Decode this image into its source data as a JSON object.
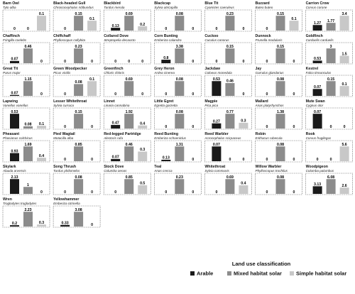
{
  "chart_data": {
    "type": "bar",
    "categories": [
      "Arable",
      "Mixed habitat solar",
      "Simple habitat solar"
    ],
    "colors": [
      "#1a1a1a",
      "#8c8c8c",
      "#c8c8c8"
    ],
    "legend": {
      "title": "Land use classification",
      "entries": [
        "Arable",
        "Mixed habitat solar",
        "Simple habitat solar"
      ],
      "placement": "bottom-right"
    },
    "panels": [
      {
        "common": "Barn Owl",
        "latin": "Tyto alba",
        "values": [
          0,
          0,
          0.1
        ],
        "labels": [
          "0",
          "0",
          "0.1"
        ]
      },
      {
        "common": "Black-headed Gull",
        "latin": "Chroicocephalus ridibundus",
        "values": [
          0,
          0.15,
          0.1
        ],
        "labels": [
          "0",
          "0.15",
          "0.1"
        ]
      },
      {
        "common": "Blackbird",
        "latin": "Turdus merula",
        "values": [
          0.13,
          0.69,
          0.2
        ],
        "labels": [
          "0.13",
          "0.69",
          "0.2"
        ]
      },
      {
        "common": "Blackcap",
        "latin": "Sylvia atricapilla",
        "values": [
          0,
          0.08,
          0
        ],
        "labels": [
          "0",
          "0.08",
          "0"
        ]
      },
      {
        "common": "Blue Tit",
        "latin": "Cyanistes caeruleus",
        "values": [
          0,
          0.23,
          0
        ],
        "labels": [
          "0",
          "0.23",
          "0"
        ]
      },
      {
        "common": "Buzzard",
        "latin": "Buteo buteo",
        "values": [
          0,
          0.15,
          0.1
        ],
        "labels": [
          "0",
          "0.15",
          "0.1"
        ]
      },
      {
        "common": "Carrion Crow",
        "latin": "Corvus corone",
        "values": [
          1.27,
          1.77,
          3.4
        ],
        "labels": [
          "1.27",
          "1.77",
          "3.4"
        ]
      },
      {
        "common": "Chaffinch",
        "latin": "Fringilla coelebs",
        "values": [
          0.07,
          0.46,
          0
        ],
        "labels": [
          "0.07",
          "0.46",
          "0"
        ]
      },
      {
        "common": "Chiffchaff",
        "latin": "Phylloscopus collybita",
        "values": [
          0,
          0.23,
          0
        ],
        "labels": [
          "0",
          "0.23",
          "0"
        ]
      },
      {
        "common": "Collared Dove",
        "latin": "Streptopelia decaocto",
        "values": [
          0,
          0,
          0
        ],
        "labels": [
          "0",
          "0",
          "0"
        ]
      },
      {
        "common": "Corn Bunting",
        "latin": "Emberiza calandra",
        "values": [
          0.8,
          3.38,
          0
        ],
        "labels": [
          "0.8",
          "3.38",
          "0"
        ]
      },
      {
        "common": "Cuckoo",
        "latin": "Cuculus canorus",
        "values": [
          0,
          0.15,
          0
        ],
        "labels": [
          "0",
          "0.15",
          "0"
        ]
      },
      {
        "common": "Dunnock",
        "latin": "Prunella modularis",
        "values": [
          0,
          0.15,
          0
        ],
        "labels": [
          "0",
          "0.15",
          "0"
        ]
      },
      {
        "common": "Goldfinch",
        "latin": "Carduelis carduelis",
        "values": [
          0.53,
          3,
          1.5
        ],
        "labels": [
          "0.53",
          "3",
          "1.5"
        ]
      },
      {
        "common": "Great Tit",
        "latin": "Parus major",
        "values": [
          0.07,
          1.15,
          0
        ],
        "labels": [
          "0.07",
          "1.15",
          "0"
        ]
      },
      {
        "common": "Green Woodpecker",
        "latin": "Picus viridis",
        "values": [
          0,
          0.08,
          0.1
        ],
        "labels": [
          "0",
          "0.08",
          "0.1"
        ]
      },
      {
        "common": "Greenfinch",
        "latin": "Chloris chloris",
        "values": [
          0,
          0.69,
          0
        ],
        "labels": [
          "0",
          "0.69",
          "0"
        ]
      },
      {
        "common": "Grey Heron",
        "latin": "Ardea cinerea",
        "values": [
          0,
          0.08,
          0
        ],
        "labels": [
          "0",
          "0.08",
          "0"
        ]
      },
      {
        "common": "Jackdaw",
        "latin": "Coloeus monedula",
        "values": [
          0.53,
          0.46,
          0
        ],
        "labels": [
          "0.53",
          "0.46",
          "0"
        ]
      },
      {
        "common": "Jay",
        "latin": "Garrulus glandarius",
        "values": [
          0,
          0.08,
          0
        ],
        "labels": [
          "0",
          "0.08",
          "0"
        ]
      },
      {
        "common": "Kestrel",
        "latin": "Falco tinnunculus",
        "values": [
          0.07,
          0.15,
          0.1
        ],
        "labels": [
          "0.07",
          "0.15",
          "0.1"
        ]
      },
      {
        "common": "Lapwing",
        "latin": "Vanellus vanellus",
        "values": [
          0.53,
          0.08,
          0.1
        ],
        "labels": [
          "0.53",
          "0.08",
          "0.1"
        ]
      },
      {
        "common": "Lesser Whitethroat",
        "latin": "Sylvia curruca",
        "values": [
          0,
          0.15,
          0
        ],
        "labels": [
          "0",
          "0.15",
          "0"
        ]
      },
      {
        "common": "Linnet",
        "latin": "Linaria cannabina",
        "values": [
          0.47,
          1.92,
          0.4
        ],
        "labels": [
          "0.47",
          "1.92",
          "0.4"
        ]
      },
      {
        "common": "Little Egret",
        "latin": "Egretta garzetta",
        "values": [
          0,
          0.08,
          0
        ],
        "labels": [
          "0",
          "0.08",
          "0"
        ]
      },
      {
        "common": "Magpie",
        "latin": "Pica pica",
        "values": [
          0.27,
          0.77,
          0.3
        ],
        "labels": [
          "0.27",
          "0.77",
          "0.3"
        ]
      },
      {
        "common": "Mallard",
        "latin": "Anas platyrhynchos",
        "values": [
          0,
          1.38,
          0
        ],
        "labels": [
          "0",
          "1.38",
          "0"
        ]
      },
      {
        "common": "Mute Swan",
        "latin": "Cygnus olor",
        "values": [
          0.07,
          0,
          0
        ],
        "labels": [
          "0.07",
          "0",
          "0"
        ]
      },
      {
        "common": "Pheasant",
        "latin": "Phasianus colchicus",
        "values": [
          0.93,
          1.69,
          0.4
        ],
        "labels": [
          "0.93",
          "1.69",
          "0.4"
        ]
      },
      {
        "common": "Pied Wagtail",
        "latin": "Motacilla alba",
        "values": [
          0,
          0.85,
          0
        ],
        "labels": [
          "0",
          "0.85",
          "0"
        ]
      },
      {
        "common": "Red-legged Partridge",
        "latin": "Alectoris rufa",
        "values": [
          0.07,
          0.46,
          0.3
        ],
        "labels": [
          "0.07",
          "0.46",
          "0.3"
        ]
      },
      {
        "common": "Reed Bunting",
        "latin": "Emberiza schoeniclus",
        "values": [
          0.13,
          1.31,
          0
        ],
        "labels": [
          "0.13",
          "1.31",
          "0"
        ]
      },
      {
        "common": "Reed Warbler",
        "latin": "Acrocephalus scirpaceus",
        "values": [
          0.07,
          0,
          0
        ],
        "labels": [
          "0.07",
          "0",
          "0"
        ]
      },
      {
        "common": "Robin",
        "latin": "Erithacus rubecula",
        "values": [
          0,
          0.08,
          0
        ],
        "labels": [
          "0",
          "0.08",
          "0"
        ]
      },
      {
        "common": "Rook",
        "latin": "Corvus frugilegus",
        "values": [
          0,
          0,
          5.6
        ],
        "labels": [
          "0",
          "0",
          "5.6"
        ]
      },
      {
        "common": "Skylark",
        "latin": "Alauda arvensis",
        "values": [
          2.13,
          1,
          0
        ],
        "labels": [
          "2.13",
          "1",
          "0"
        ]
      },
      {
        "common": "Song Thrush",
        "latin": "Turdus philomelos",
        "values": [
          0,
          0.08,
          0
        ],
        "labels": [
          "0",
          "0.08",
          "0"
        ]
      },
      {
        "common": "Stock Dove",
        "latin": "Columba oenas",
        "values": [
          0,
          0.85,
          0.5
        ],
        "labels": [
          "0",
          "0.85",
          "0.5"
        ]
      },
      {
        "common": "Teal",
        "latin": "Anas crecca",
        "values": [
          0,
          0.23,
          0
        ],
        "labels": [
          "0",
          "0.23",
          "0"
        ]
      },
      {
        "common": "Whitethroat",
        "latin": "Sylvia communis",
        "values": [
          0,
          0.69,
          0.4
        ],
        "labels": [
          "0",
          "0.69",
          "0.4"
        ]
      },
      {
        "common": "Willow Warbler",
        "latin": "Phylloscopus trochilus",
        "values": [
          0,
          0.08,
          0
        ],
        "labels": [
          "0",
          "0.08",
          "0"
        ]
      },
      {
        "common": "Woodpigeon",
        "latin": "Columba palumbus",
        "values": [
          3.13,
          6.08,
          2.6
        ],
        "labels": [
          "3.13",
          "6.08",
          "2.6"
        ]
      },
      {
        "common": "Wren",
        "latin": "Troglodytes troglodytes",
        "values": [
          0.2,
          2.23,
          0.3
        ],
        "labels": [
          "0.2",
          "2.23",
          "0.3"
        ]
      },
      {
        "common": "Yellowhammer",
        "latin": "Emberiza citrinella",
        "values": [
          0.33,
          3.08,
          0
        ],
        "labels": [
          "0.33",
          "3.08",
          "0"
        ]
      }
    ]
  }
}
